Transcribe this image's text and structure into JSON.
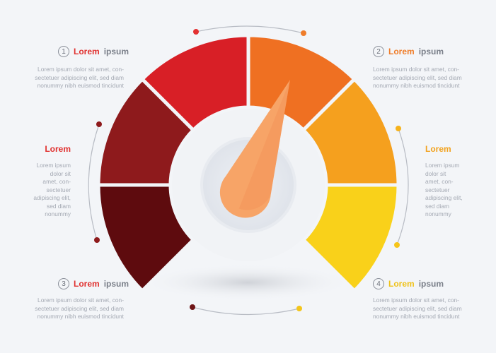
{
  "colors": {
    "background": "#f3f5f8",
    "segment_1": "#5e0b0e",
    "segment_2": "#8e1a1c",
    "segment_3": "#d81f26",
    "segment_4": "#ef7022",
    "segment_5": "#f5a01e",
    "segment_6": "#f9d11a",
    "needle": "#f7a467",
    "label_red": "#e0312f",
    "label_orange": "#ef7d2a",
    "label_amber": "#f2a21e",
    "label_yellow": "#efc21a"
  },
  "gauge": {
    "needle_value_fraction": 0.58,
    "segments": 6
  },
  "items": {
    "step1": {
      "number": "1",
      "word": "Lorem",
      "word2": "ipsum",
      "text": "Lorem ipsum dolor sit amet, con-\nsectetuer adipiscing elit, sed diam\nnonummy nibh euismod tincidunt"
    },
    "step2": {
      "number": "2",
      "word": "Lorem",
      "word2": "ipsum",
      "text": "Lorem ipsum dolor sit amet, con-\nsectetuer adipiscing elit, sed diam\nnonummy nibh euismod tincidunt"
    },
    "step3": {
      "number": "3",
      "word": "Lorem",
      "word2": "ipsum",
      "text": "Lorem ipsum dolor sit amet, con-\nsectetuer adipiscing elit, sed diam\nnonummy nibh euismod tincidunt"
    },
    "step4": {
      "number": "4",
      "word": "Lorem",
      "word2": "ipsum",
      "text": "Lorem ipsum dolor sit amet, con-\nsectetuer adipiscing elit, sed diam\nnonummy nibh euismod tincidunt"
    },
    "left": {
      "word": "Lorem",
      "text": "Lorem ipsum\ndolor sit\namet, con-\nsectetuer\nadipiscing elit,\nsed diam\nnonummy"
    },
    "right": {
      "word": "Lorem",
      "text": "Lorem ipsum\ndolor sit\namet, con-\nsectetuer\nadipiscing elit,\nsed diam\nnonummy"
    }
  }
}
